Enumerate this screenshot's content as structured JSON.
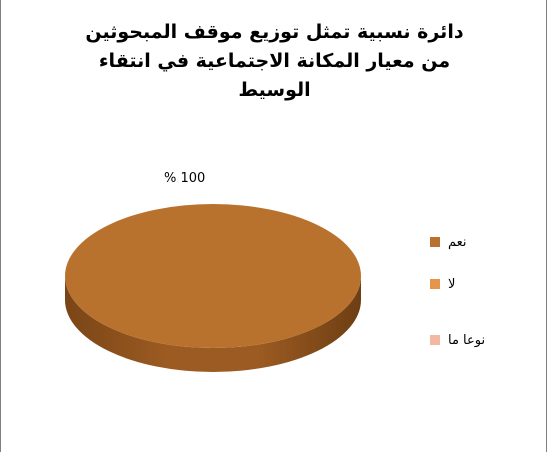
{
  "chart_data": {
    "type": "pie",
    "title_lines": [
      "دائرة نسبية تمثل توزيع  موقف المبحوثين",
      "من معيار المكانة الاجتماعية في انتقاء",
      "الوسيط"
    ],
    "categories": [
      "نعم",
      "لا",
      "نوعا ما"
    ],
    "values": [
      100,
      0,
      0
    ],
    "data_label": "% 100",
    "colors": [
      "#b8722d",
      "#e6954c",
      "#f2b9a0"
    ],
    "legend_position": "right",
    "style": "3d"
  }
}
